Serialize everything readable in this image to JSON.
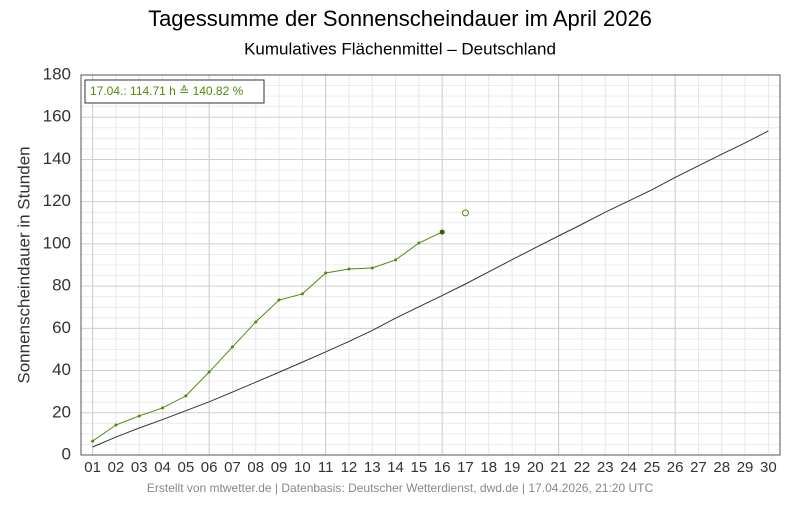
{
  "chart_data": {
    "type": "line",
    "title": "Tagessumme der Sonnenscheindauer im April 2026",
    "subtitle": "Kumulatives Flächenmittel – Deutschland",
    "y_label": "Sonnenscheindauer in Stunden",
    "annotation": "17.04.: 114.71 h ≙ 140.82 %",
    "footer": "Erstellt von mtwetter.de | Datenbasis: Deutscher Wetterdienst, dwd.de | 17.04.2026, 21:20 UTC",
    "categories": [
      "01",
      "02",
      "03",
      "04",
      "05",
      "06",
      "07",
      "08",
      "09",
      "10",
      "11",
      "12",
      "13",
      "14",
      "15",
      "16",
      "17",
      "18",
      "19",
      "20",
      "21",
      "22",
      "23",
      "24",
      "25",
      "26",
      "27",
      "28",
      "29",
      "30"
    ],
    "series": [
      {
        "color": "#4c8c0c",
        "marker": "dot",
        "values": [
          6.6,
          14.2,
          18.5,
          22.3,
          28,
          39.3,
          51.2,
          63,
          73.4,
          76.3,
          86.2,
          88.1,
          88.6,
          92.4,
          100.4,
          105.6,
          null,
          null,
          null,
          null,
          null,
          null,
          null,
          null,
          null,
          null,
          null,
          null,
          null,
          null
        ]
      },
      {
        "color": "#4c8c0c",
        "marker": "open",
        "values": [
          null,
          null,
          null,
          null,
          null,
          null,
          null,
          null,
          null,
          null,
          null,
          null,
          null,
          null,
          null,
          null,
          114.71,
          null,
          null,
          null,
          null,
          null,
          null,
          null,
          null,
          null,
          null,
          null,
          null,
          null
        ]
      },
      {
        "color": "#333333",
        "marker": "none",
        "values": [
          3.8,
          8.5,
          12.8,
          16.8,
          21,
          25.2,
          29.8,
          34.5,
          39.2,
          44,
          48.8,
          53.8,
          59,
          64.8,
          70.2,
          75.5,
          81,
          86.8,
          92.5,
          98.2,
          103.8,
          109.3,
          115,
          120.3,
          125.6,
          131.5,
          137,
          142.5,
          147.8,
          153.5
        ]
      }
    ],
    "ylim": [
      0,
      180
    ],
    "yticks": [
      0,
      20,
      40,
      60,
      80,
      100,
      120,
      140,
      160,
      180
    ],
    "grid": true
  }
}
